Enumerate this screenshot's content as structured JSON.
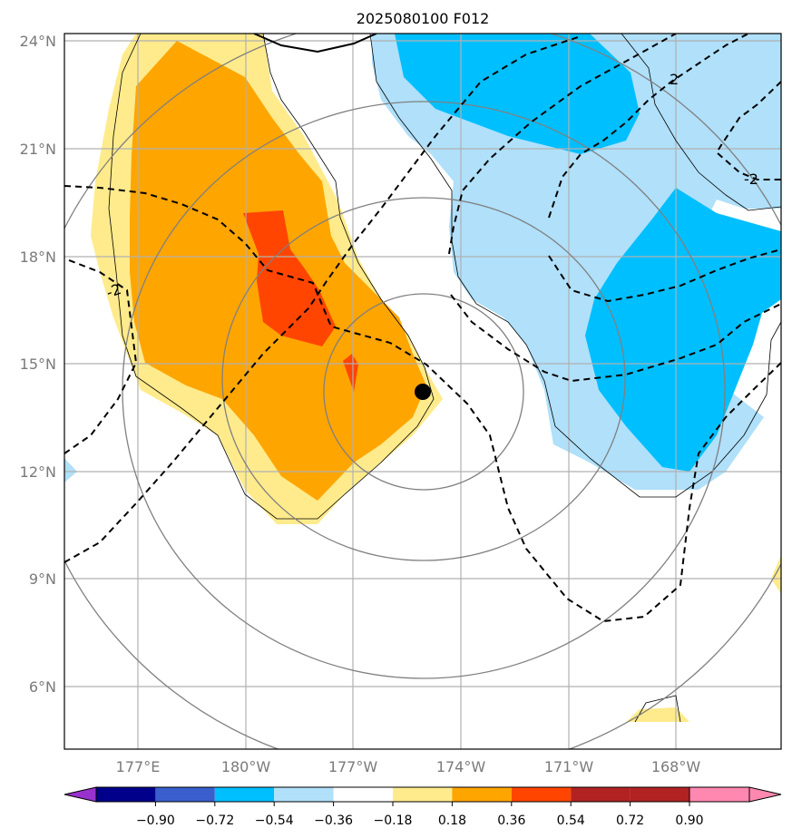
{
  "title": "2025080100 F012",
  "map": {
    "lat_labels": [
      "24°N",
      "21°N",
      "18°N",
      "15°N",
      "12°N",
      "9°N",
      "6°N"
    ],
    "lon_labels": [
      "177°E",
      "180°W",
      "177°W",
      "174°W",
      "171°W",
      "168°W"
    ],
    "contour_labels": [
      "2",
      "-2",
      "-2"
    ],
    "marker": {
      "name": "storm-center",
      "lat": 14.2,
      "lon": "174.9°W"
    }
  },
  "colorbar": {
    "ticks": [
      "−0.90",
      "−0.72",
      "−0.54",
      "−0.36",
      "−0.18",
      "0.18",
      "0.36",
      "0.54",
      "0.72",
      "0.90"
    ],
    "colors": [
      "#9932cc",
      "#00008b",
      "#3a5fcd",
      "#00bfff",
      "#b0e0fa",
      "#ffffff",
      "#ffeb8c",
      "#ffa500",
      "#ff4500",
      "#b22222",
      "#ff88b0"
    ],
    "extend": "both"
  }
}
